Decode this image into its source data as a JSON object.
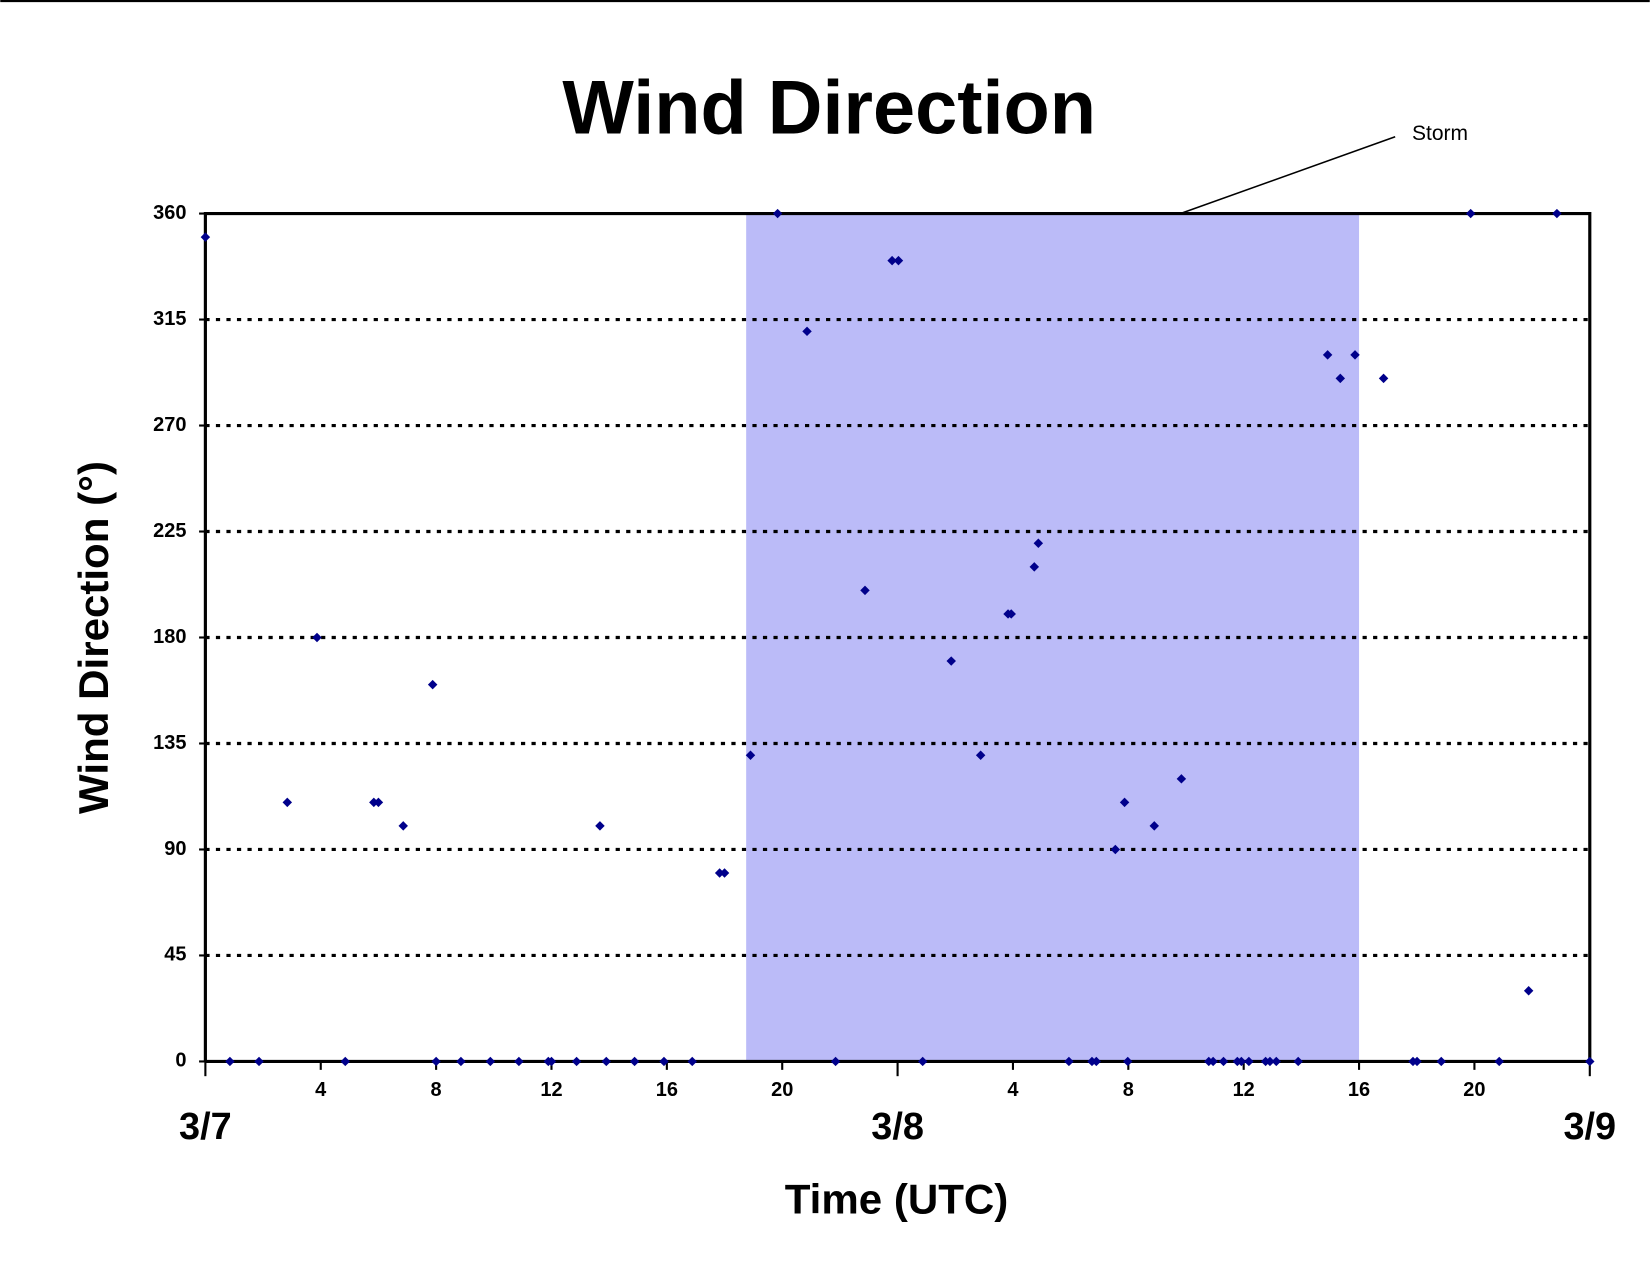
{
  "chart_data": {
    "type": "scatter",
    "title": "Wind Direction",
    "xlabel": "Time (UTC)",
    "ylabel": "Wind Direction (°)",
    "x": [
      0,
      0.85,
      1.86,
      2.84,
      3.87,
      4.85,
      5.84,
      6.0,
      6.86,
      7.88,
      8.0,
      8.86,
      9.88,
      10.87,
      11.89,
      12.0,
      12.87,
      13.68,
      13.9,
      14.88,
      15.9,
      16.88,
      17.83,
      18.0,
      18.9,
      19.84,
      20.86,
      21.85,
      22.87,
      23.81,
      24.03,
      24.87,
      25.86,
      26.88,
      27.83,
      27.94,
      28.74,
      28.88,
      29.94,
      30.74,
      30.89,
      31.55,
      31.87,
      31.98,
      32.9,
      33.84,
      34.79,
      34.94,
      35.3,
      35.78,
      35.92,
      36.18,
      36.76,
      36.91,
      37.13,
      37.89,
      38.91,
      39.35,
      39.86,
      40.85,
      41.87,
      42.01,
      42.85,
      43.87,
      44.86,
      45.88,
      46.86,
      48
    ],
    "values": [
      350,
      0,
      0,
      110,
      180,
      0,
      110,
      110,
      100,
      160,
      0,
      0,
      0,
      0,
      0,
      0,
      0,
      100,
      0,
      0,
      0,
      0,
      80,
      80,
      130,
      360,
      310,
      0,
      200,
      340,
      340,
      0,
      170,
      130,
      190,
      190,
      210,
      220,
      0,
      0,
      0,
      90,
      110,
      0,
      100,
      120,
      0,
      0,
      0,
      0,
      0,
      0,
      0,
      0,
      0,
      0,
      300,
      290,
      300,
      290,
      0,
      0,
      0,
      360,
      0,
      30,
      360,
      0
    ],
    "color": "#00008b",
    "xlim": [
      0,
      48
    ],
    "xticks": [
      4,
      8,
      12,
      16,
      20,
      {
        "value": 28,
        "label": "4"
      },
      {
        "value": 32,
        "label": "8"
      },
      {
        "value": 36,
        "label": "12"
      },
      {
        "value": 40,
        "label": "16"
      },
      {
        "value": 44,
        "label": "20"
      }
    ],
    "day_ticks": [
      {
        "value": 0,
        "label": "3/7"
      },
      {
        "value": 24,
        "label": "3/8"
      },
      {
        "value": 48,
        "label": "3/9"
      }
    ],
    "ylim": [
      0,
      360
    ],
    "yticks": [
      0,
      45,
      90,
      135,
      180,
      225,
      270,
      315,
      360
    ],
    "grid": true,
    "shaded_region": {
      "x": [
        18.75,
        40
      ],
      "color": "#bbbbf8"
    },
    "annotations": [
      {
        "text": "Storm"
      }
    ]
  }
}
